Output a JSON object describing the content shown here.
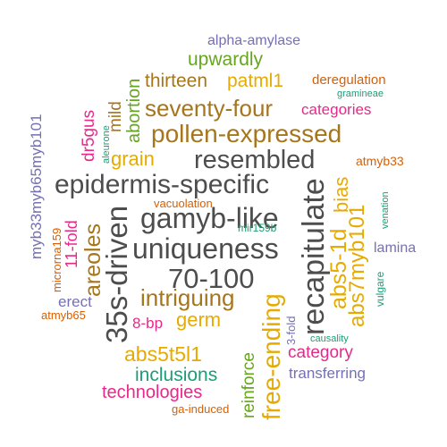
{
  "colors": {
    "gray": "#4d4d4d",
    "brown": "#a6761d",
    "green": "#66a61e",
    "purple": "#7570b3",
    "magenta": "#e7298a",
    "orange": "#d95f02",
    "gold": "#e6ab02",
    "teal": "#1b9e77"
  },
  "words": [
    {
      "text": "alpha-amylase",
      "color": "purple"
    },
    {
      "text": "upwardly",
      "color": "green"
    },
    {
      "text": "thirteen",
      "color": "brown"
    },
    {
      "text": "patml1",
      "color": "gold"
    },
    {
      "text": "deregulation",
      "color": "orange"
    },
    {
      "text": "gramineae",
      "color": "teal"
    },
    {
      "text": "seventy-four",
      "color": "brown"
    },
    {
      "text": "categories",
      "color": "magenta"
    },
    {
      "text": "pollen-expressed",
      "color": "brown"
    },
    {
      "text": "grain",
      "color": "gold"
    },
    {
      "text": "resembled",
      "color": "gray"
    },
    {
      "text": "atmyb33",
      "color": "orange"
    },
    {
      "text": "epidermis-specific",
      "color": "gray"
    },
    {
      "text": "gamyb-like",
      "color": "gray"
    },
    {
      "text": "vacuolation",
      "color": "orange"
    },
    {
      "text": "mir159b",
      "color": "teal"
    },
    {
      "text": "uniqueness",
      "color": "gray"
    },
    {
      "text": "lamina",
      "color": "purple"
    },
    {
      "text": "70-100",
      "color": "gray"
    },
    {
      "text": "intriguing",
      "color": "brown"
    },
    {
      "text": "germ",
      "color": "gold"
    },
    {
      "text": "8-bp",
      "color": "magenta"
    },
    {
      "text": "erect",
      "color": "purple"
    },
    {
      "text": "atmyb65",
      "color": "orange"
    },
    {
      "text": "causality",
      "color": "teal"
    },
    {
      "text": "category",
      "color": "magenta"
    },
    {
      "text": "abs5t5l1",
      "color": "gold"
    },
    {
      "text": "inclusions",
      "color": "teal"
    },
    {
      "text": "transferring",
      "color": "purple"
    },
    {
      "text": "technologies",
      "color": "magenta"
    },
    {
      "text": "ga-induced",
      "color": "orange"
    },
    {
      "text": "myb33myb65myb101",
      "color": "purple"
    },
    {
      "text": "dr5gus",
      "color": "magenta"
    },
    {
      "text": "aleurone",
      "color": "teal"
    },
    {
      "text": "mild",
      "color": "brown"
    },
    {
      "text": "abortion",
      "color": "green"
    },
    {
      "text": "microrna159",
      "color": "orange"
    },
    {
      "text": "11-fold",
      "color": "magenta"
    },
    {
      "text": "areoles",
      "color": "brown"
    },
    {
      "text": "35s-driven",
      "color": "gray"
    },
    {
      "text": "reinforce",
      "color": "green"
    },
    {
      "text": "free-ending",
      "color": "gold"
    },
    {
      "text": "recapitulate",
      "color": "gray"
    },
    {
      "text": "3-fold",
      "color": "purple"
    },
    {
      "text": "abs5-1d",
      "color": "gold"
    },
    {
      "text": "bias",
      "color": "gold"
    },
    {
      "text": "abs7myb101",
      "color": "gold"
    },
    {
      "text": "venation",
      "color": "teal"
    },
    {
      "text": "vulgare",
      "color": "teal"
    }
  ]
}
